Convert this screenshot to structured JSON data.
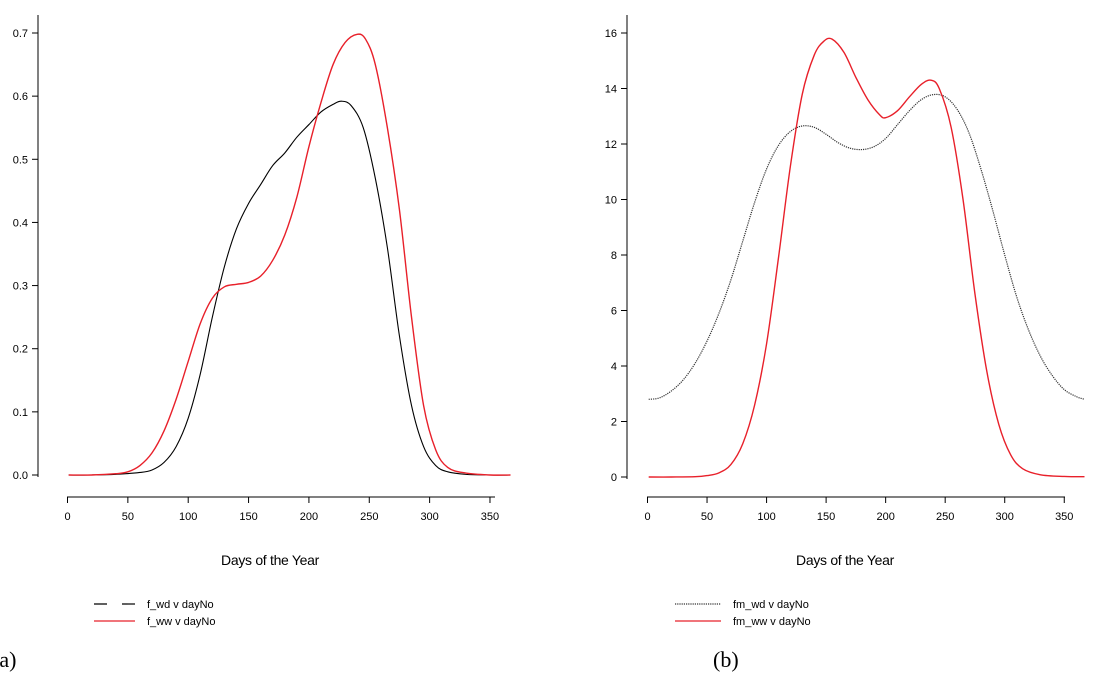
{
  "panels": [
    {
      "panel_label": "(a)",
      "chart_data": {
        "type": "line",
        "title": "",
        "xlabel": "Days of the Year",
        "ylabel": "",
        "xlim": [
          0,
          367
        ],
        "ylim": [
          0,
          0.7
        ],
        "xticks": [
          "0",
          "50",
          "100",
          "150",
          "200",
          "250",
          "300",
          "350"
        ],
        "yticks": [
          "0.0",
          "0.1",
          "0.2",
          "0.3",
          "0.4",
          "0.5",
          "0.6",
          "0.7"
        ],
        "legend_position": "bottom-left",
        "series": [
          {
            "name": "f_wd v dayNo",
            "color": "#000000",
            "points": [
              [
                1,
                0.0
              ],
              [
                20,
                0.0
              ],
              [
                40,
                0.001
              ],
              [
                60,
                0.004
              ],
              [
                70,
                0.008
              ],
              [
                80,
                0.02
              ],
              [
                90,
                0.045
              ],
              [
                100,
                0.09
              ],
              [
                110,
                0.16
              ],
              [
                120,
                0.25
              ],
              [
                130,
                0.33
              ],
              [
                140,
                0.39
              ],
              [
                150,
                0.43
              ],
              [
                160,
                0.46
              ],
              [
                170,
                0.49
              ],
              [
                180,
                0.51
              ],
              [
                190,
                0.535
              ],
              [
                200,
                0.555
              ],
              [
                210,
                0.575
              ],
              [
                220,
                0.587
              ],
              [
                227,
                0.592
              ],
              [
                235,
                0.585
              ],
              [
                245,
                0.55
              ],
              [
                255,
                0.47
              ],
              [
                265,
                0.36
              ],
              [
                275,
                0.22
              ],
              [
                285,
                0.11
              ],
              [
                295,
                0.045
              ],
              [
                305,
                0.015
              ],
              [
                315,
                0.005
              ],
              [
                330,
                0.001
              ],
              [
                350,
                0.0
              ],
              [
                367,
                0.0
              ]
            ]
          },
          {
            "name": "f_ww v dayNo",
            "color": "#e8202a",
            "points": [
              [
                1,
                0.0
              ],
              [
                20,
                0.0
              ],
              [
                40,
                0.002
              ],
              [
                50,
                0.005
              ],
              [
                60,
                0.015
              ],
              [
                70,
                0.035
              ],
              [
                80,
                0.07
              ],
              [
                90,
                0.12
              ],
              [
                100,
                0.18
              ],
              [
                110,
                0.24
              ],
              [
                120,
                0.28
              ],
              [
                130,
                0.298
              ],
              [
                140,
                0.302
              ],
              [
                150,
                0.305
              ],
              [
                160,
                0.315
              ],
              [
                170,
                0.34
              ],
              [
                180,
                0.38
              ],
              [
                190,
                0.44
              ],
              [
                200,
                0.52
              ],
              [
                210,
                0.59
              ],
              [
                220,
                0.65
              ],
              [
                230,
                0.685
              ],
              [
                240,
                0.698
              ],
              [
                247,
                0.69
              ],
              [
                255,
                0.65
              ],
              [
                265,
                0.55
              ],
              [
                275,
                0.42
              ],
              [
                285,
                0.25
              ],
              [
                295,
                0.11
              ],
              [
                305,
                0.04
              ],
              [
                315,
                0.012
              ],
              [
                330,
                0.003
              ],
              [
                350,
                0.0
              ],
              [
                367,
                0.0
              ]
            ]
          }
        ]
      }
    },
    {
      "panel_label": "(b)",
      "chart_data": {
        "type": "line",
        "title": "",
        "xlabel": "Days of the Year",
        "ylabel": "",
        "xlim": [
          0,
          367
        ],
        "ylim": [
          0,
          16
        ],
        "xticks": [
          "0",
          "50",
          "100",
          "150",
          "200",
          "250",
          "300",
          "350"
        ],
        "yticks": [
          "0",
          "2",
          "4",
          "6",
          "8",
          "10",
          "12",
          "14",
          "16"
        ],
        "legend_position": "bottom-left",
        "series": [
          {
            "name": "fm_wd v dayNo",
            "color": "#333333",
            "points": [
              [
                1,
                2.8
              ],
              [
                10,
                2.85
              ],
              [
                20,
                3.1
              ],
              [
                30,
                3.5
              ],
              [
                40,
                4.1
              ],
              [
                50,
                4.9
              ],
              [
                60,
                5.9
              ],
              [
                70,
                7.1
              ],
              [
                80,
                8.5
              ],
              [
                90,
                9.9
              ],
              [
                100,
                11.1
              ],
              [
                110,
                11.95
              ],
              [
                120,
                12.45
              ],
              [
                130,
                12.65
              ],
              [
                140,
                12.6
              ],
              [
                150,
                12.35
              ],
              [
                160,
                12.05
              ],
              [
                170,
                11.85
              ],
              [
                180,
                11.8
              ],
              [
                190,
                11.9
              ],
              [
                200,
                12.2
              ],
              [
                210,
                12.7
              ],
              [
                220,
                13.2
              ],
              [
                230,
                13.6
              ],
              [
                240,
                13.78
              ],
              [
                250,
                13.7
              ],
              [
                260,
                13.25
              ],
              [
                270,
                12.4
              ],
              [
                280,
                11.1
              ],
              [
                290,
                9.6
              ],
              [
                300,
                8.0
              ],
              [
                310,
                6.5
              ],
              [
                320,
                5.3
              ],
              [
                330,
                4.35
              ],
              [
                340,
                3.65
              ],
              [
                350,
                3.15
              ],
              [
                360,
                2.9
              ],
              [
                367,
                2.8
              ]
            ]
          },
          {
            "name": "fm_ww v dayNo",
            "color": "#e8202a",
            "points": [
              [
                1,
                0.0
              ],
              [
                20,
                0.0
              ],
              [
                40,
                0.01
              ],
              [
                50,
                0.05
              ],
              [
                60,
                0.15
              ],
              [
                70,
                0.45
              ],
              [
                80,
                1.2
              ],
              [
                90,
                2.6
              ],
              [
                100,
                4.8
              ],
              [
                110,
                7.9
              ],
              [
                120,
                11.2
              ],
              [
                130,
                13.8
              ],
              [
                140,
                15.2
              ],
              [
                148,
                15.7
              ],
              [
                155,
                15.78
              ],
              [
                165,
                15.3
              ],
              [
                175,
                14.4
              ],
              [
                185,
                13.6
              ],
              [
                195,
                13.05
              ],
              [
                200,
                12.95
              ],
              [
                210,
                13.2
              ],
              [
                220,
                13.7
              ],
              [
                230,
                14.15
              ],
              [
                238,
                14.3
              ],
              [
                245,
                14.0
              ],
              [
                255,
                12.6
              ],
              [
                265,
                10.0
              ],
              [
                275,
                6.6
              ],
              [
                285,
                3.8
              ],
              [
                295,
                1.9
              ],
              [
                305,
                0.8
              ],
              [
                315,
                0.3
              ],
              [
                330,
                0.08
              ],
              [
                350,
                0.02
              ],
              [
                367,
                0.01
              ]
            ]
          }
        ]
      }
    }
  ]
}
